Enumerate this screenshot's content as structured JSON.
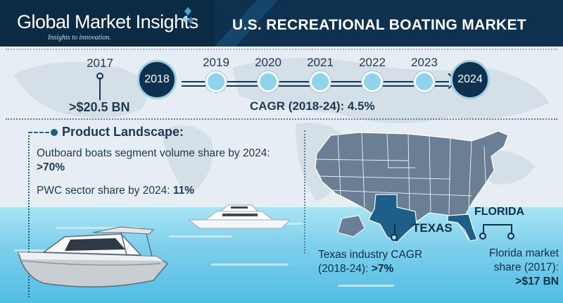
{
  "header": {
    "brand": "Global Market Insights",
    "tagline": "Insights to innovation.",
    "title": "U.S. RECREATIONAL BOATING MARKET"
  },
  "timeline": {
    "years": [
      "2017",
      "2018",
      "2019",
      "2020",
      "2021",
      "2022",
      "2023",
      "2024"
    ],
    "value_2017": ">$20.5 BN",
    "cagr": "CAGR (2018-24): 4.5%"
  },
  "product_landscape": {
    "title": "Product Landscape:",
    "outboard_text": "Outboard boats segment volume share by 2024:",
    "outboard_value": ">70%",
    "pwc_text": "PWC sector share by 2024:",
    "pwc_value": "11%"
  },
  "states": {
    "texas_label": "TEXAS",
    "florida_label": "FLORIDA",
    "texas_cagr_line1": "Texas industry CAGR",
    "texas_cagr_line2": "(2018-24):",
    "texas_cagr_value": ">7%",
    "florida_line1": "Florida market",
    "florida_line2": "share (2017):",
    "florida_value": ">$17 BN"
  },
  "colors": {
    "navy": "#0f3150",
    "accent_blue": "#8fd3ec",
    "map_gray": "#6a7f93",
    "highlight_state": "#1e5f8a"
  }
}
